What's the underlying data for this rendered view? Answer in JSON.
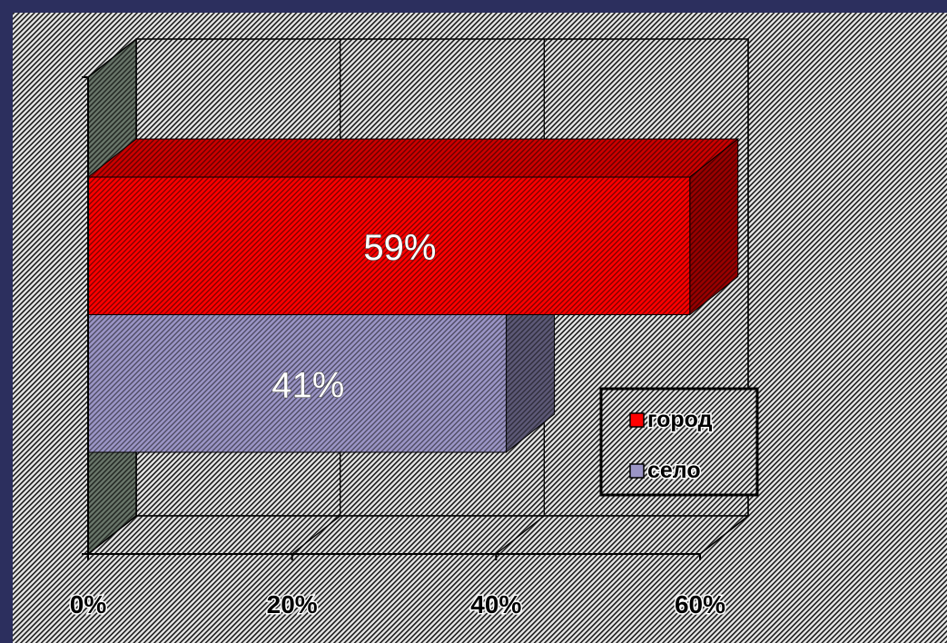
{
  "chart_data": {
    "type": "bar",
    "orientation": "horizontal",
    "style": "3d",
    "series": [
      {
        "name": "город",
        "values": [
          59
        ],
        "label": "59%",
        "color": "#ff0000"
      },
      {
        "name": "село",
        "values": [
          41
        ],
        "label": "41%",
        "color": "#9b95c6"
      }
    ],
    "x_axis": {
      "range": [
        0,
        60
      ],
      "ticks": [
        {
          "value": 0,
          "label": "0%"
        },
        {
          "value": 20,
          "label": "20%"
        },
        {
          "value": 40,
          "label": "40%"
        },
        {
          "value": 60,
          "label": "60%"
        }
      ]
    },
    "grid": true,
    "legend_position": "bottom-right"
  },
  "colors": {
    "slide_background": "#2c2f5e",
    "chart_area": "#e6e6e6",
    "hatch": "#1a1a1a",
    "side_wall": "#6a776b",
    "axis": "#000000",
    "data_label": "#ffffff"
  }
}
